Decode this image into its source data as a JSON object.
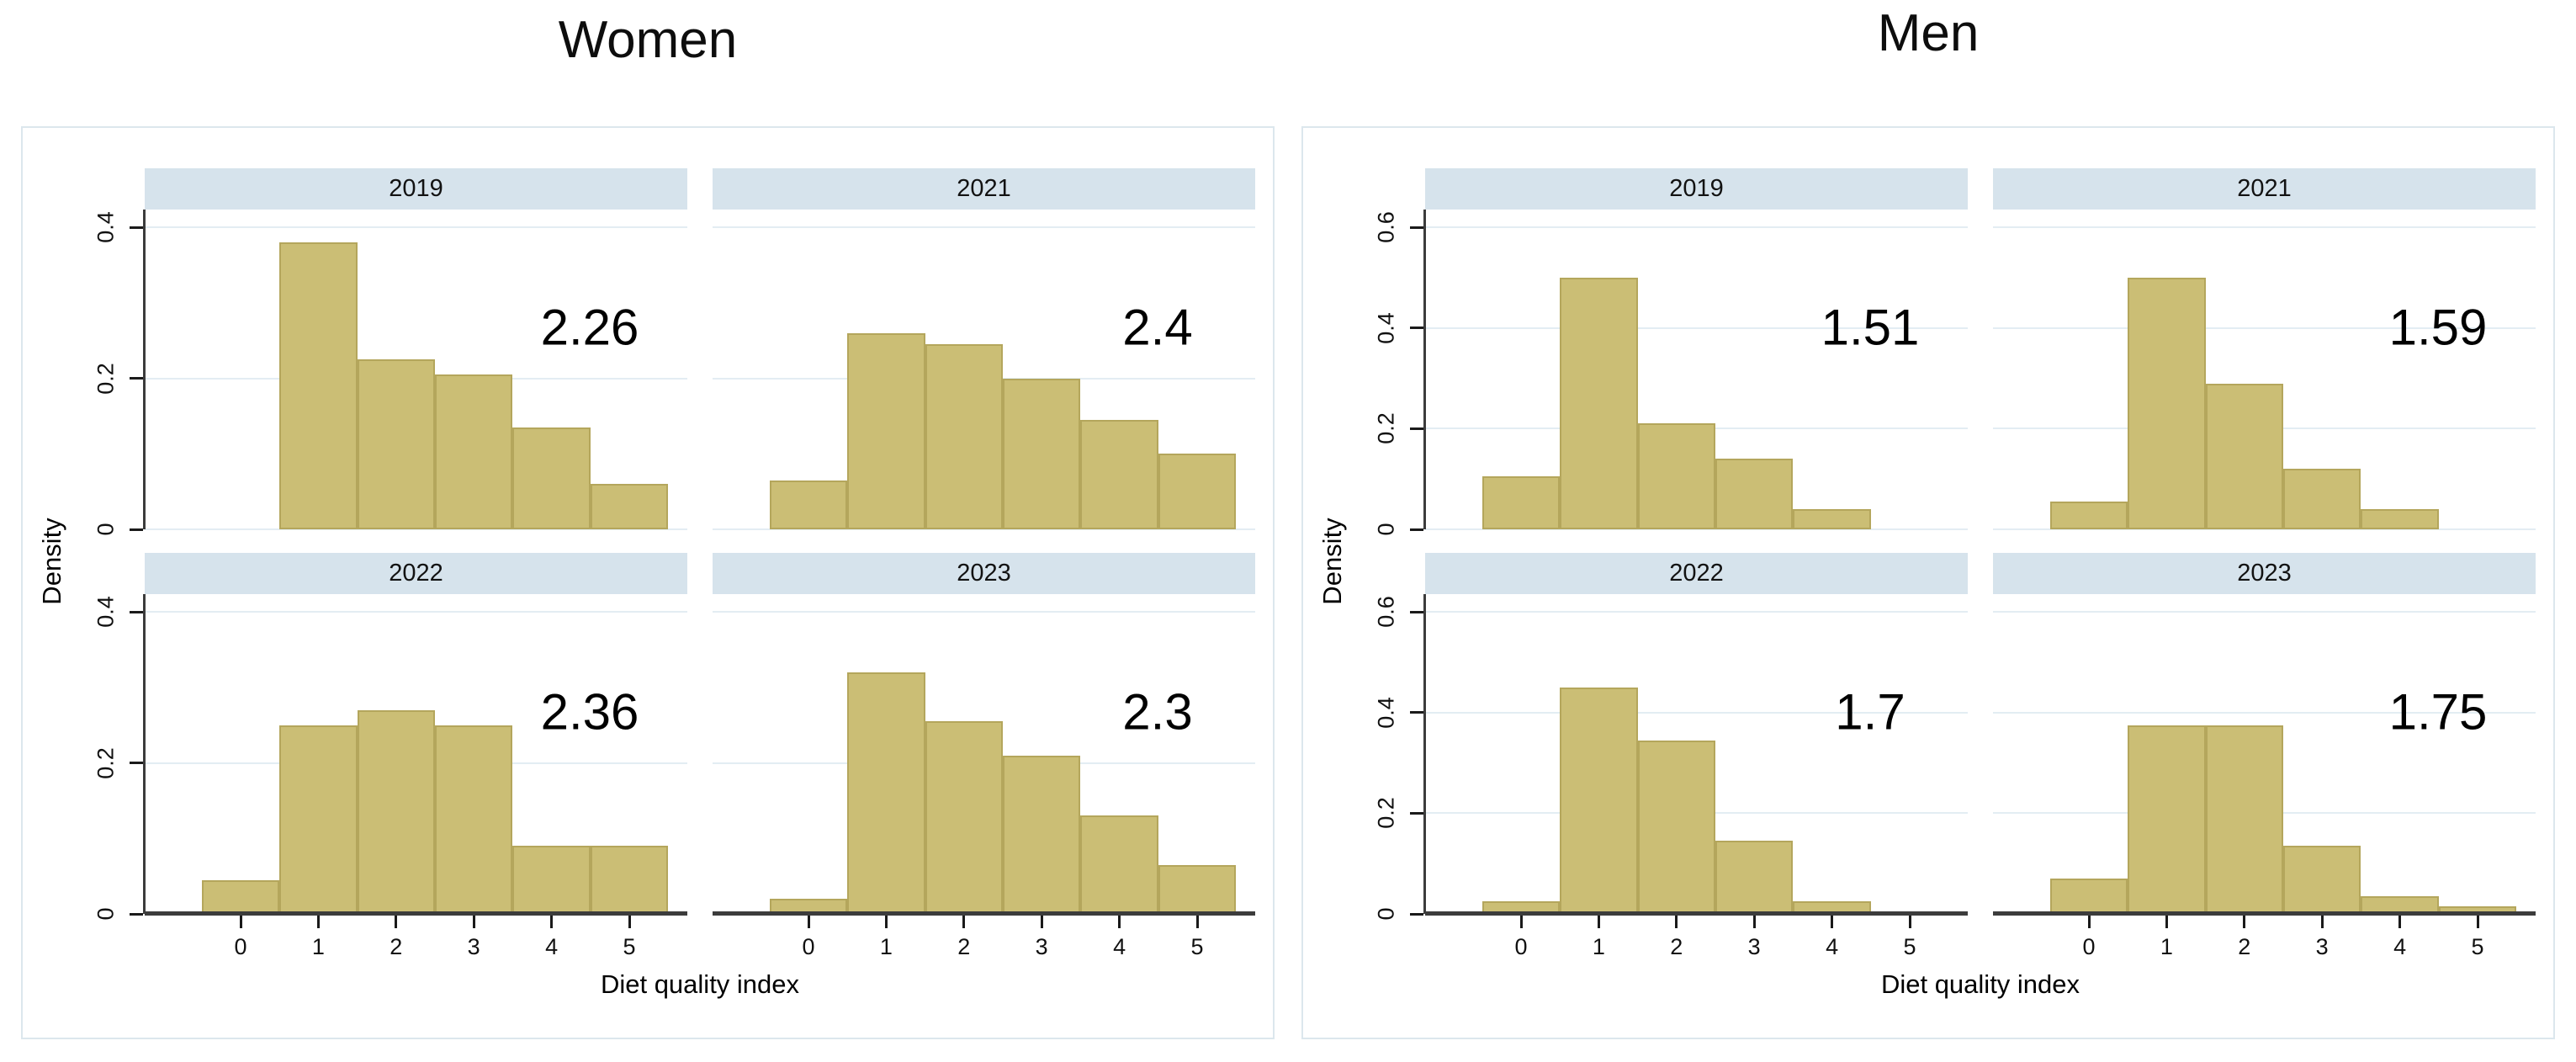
{
  "figure": {
    "background": "#ffffff",
    "ylabel": "Density",
    "xlabel": "Diet quality index"
  },
  "style": {
    "bar_fill": "#cbbe75",
    "bar_border": "#b4a65c",
    "strip_bg": "#d6e3ec",
    "grid_color": "#e3edf3",
    "axis_color": "#3c3c3c",
    "card_border": "#dce7ed"
  },
  "chart_data": [
    {
      "type": "bar",
      "title": "Women",
      "xlabel": "Diet quality index",
      "ylabel": "Density",
      "categories": [
        0,
        1,
        2,
        3,
        4,
        5
      ],
      "xtick_labels": [
        "0",
        "1",
        "2",
        "3",
        "4",
        "5"
      ],
      "ylim": [
        0,
        0.4
      ],
      "yticks": [
        0,
        0.2,
        0.4
      ],
      "ytick_labels": [
        "0",
        "0.2",
        "0.4"
      ],
      "grid": "horizontal",
      "legend": "none",
      "facets": [
        {
          "label": "2019",
          "mean_label": "2.26",
          "values": [
            0,
            0.38,
            0.225,
            0.205,
            0.135,
            0.06
          ]
        },
        {
          "label": "2021",
          "mean_label": "2.4",
          "values": [
            0.065,
            0.26,
            0.245,
            0.2,
            0.145,
            0.1
          ]
        },
        {
          "label": "2022",
          "mean_label": "2.36",
          "values": [
            0.045,
            0.25,
            0.27,
            0.25,
            0.09,
            0.09
          ]
        },
        {
          "label": "2023",
          "mean_label": "2.3",
          "values": [
            0.02,
            0.32,
            0.255,
            0.21,
            0.13,
            0.065
          ]
        }
      ]
    },
    {
      "type": "bar",
      "title": "Men",
      "xlabel": "Diet quality index",
      "ylabel": "Density",
      "categories": [
        0,
        1,
        2,
        3,
        4,
        5
      ],
      "xtick_labels": [
        "0",
        "1",
        "2",
        "3",
        "4",
        "5"
      ],
      "ylim": [
        0,
        0.6
      ],
      "yticks": [
        0,
        0.2,
        0.4,
        0.6
      ],
      "ytick_labels": [
        "0",
        "0.2",
        "0.4",
        "0.6"
      ],
      "grid": "horizontal",
      "legend": "none",
      "facets": [
        {
          "label": "2019",
          "mean_label": "1.51",
          "values": [
            0.105,
            0.5,
            0.21,
            0.14,
            0.04,
            0
          ]
        },
        {
          "label": "2021",
          "mean_label": "1.59",
          "values": [
            0.055,
            0.5,
            0.29,
            0.12,
            0.04,
            0
          ]
        },
        {
          "label": "2022",
          "mean_label": "1.7",
          "values": [
            0.025,
            0.45,
            0.345,
            0.145,
            0.025,
            0
          ]
        },
        {
          "label": "2023",
          "mean_label": "1.75",
          "values": [
            0.07,
            0.375,
            0.375,
            0.135,
            0.035,
            0.015
          ]
        }
      ]
    }
  ]
}
